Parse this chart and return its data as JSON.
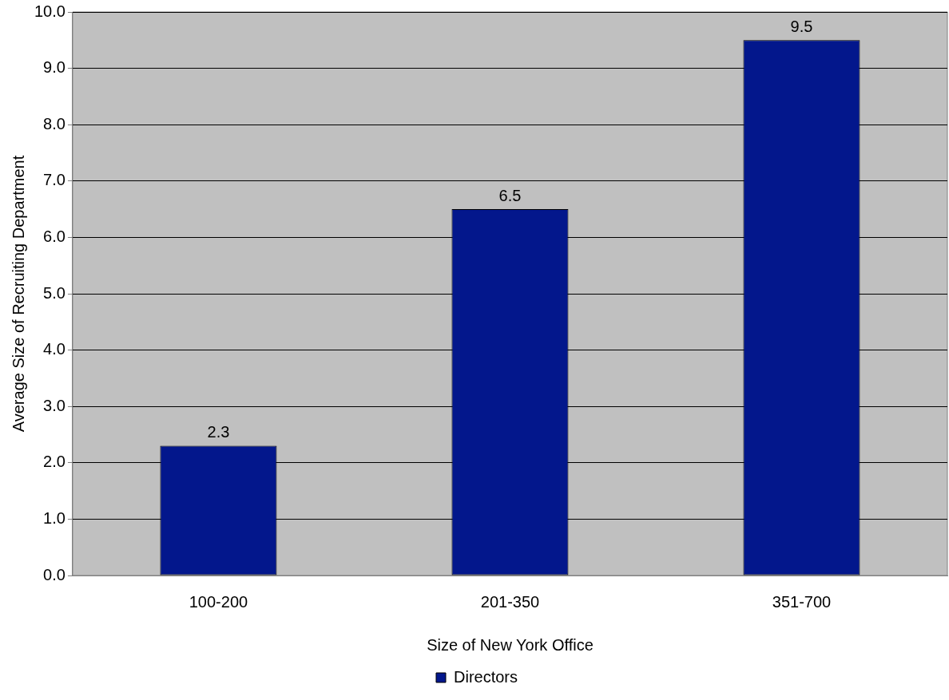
{
  "chart_data": {
    "type": "bar",
    "xlabel": "Size of New York Office",
    "ylabel": "Average Size of Recruiting Department",
    "categories": [
      "100-200",
      "201-350",
      "351-700"
    ],
    "series": [
      {
        "name": "Directors",
        "color": "#03178c",
        "values": [
          2.3,
          6.5,
          9.5
        ]
      }
    ],
    "ylim": [
      0,
      10
    ],
    "yticks": [
      {
        "value": 0,
        "label": "0.0"
      },
      {
        "value": 1,
        "label": "1.0"
      },
      {
        "value": 2,
        "label": "2.0"
      },
      {
        "value": 3,
        "label": "3.0"
      },
      {
        "value": 4,
        "label": "4.0"
      },
      {
        "value": 5,
        "label": "5.0"
      },
      {
        "value": 6,
        "label": "6.0"
      },
      {
        "value": 7,
        "label": "7.0"
      },
      {
        "value": 8,
        "label": "8.0"
      },
      {
        "value": 9,
        "label": "9.0"
      },
      {
        "value": 10,
        "label": "10.0"
      }
    ],
    "grid": "y",
    "legend": "bottom",
    "data_labels": true
  }
}
